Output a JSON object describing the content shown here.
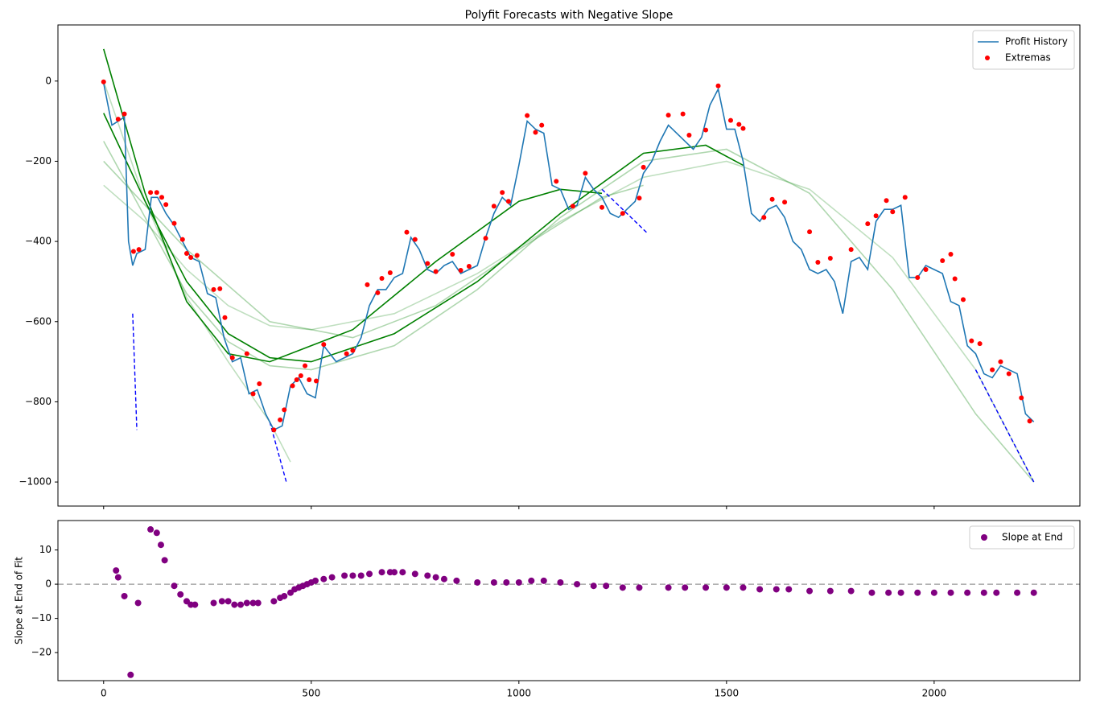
{
  "chart_data": [
    {
      "type": "line",
      "title": "Polyfit Forecasts with Negative Slope",
      "xlim": [
        -110,
        2351
      ],
      "ylim": [
        -1060,
        140
      ],
      "xticks": [
        0,
        500,
        1000,
        1500,
        2000
      ],
      "xtick_labels": false,
      "yticks": [
        0,
        {
          "value": -200,
          "label": "−200"
        },
        {
          "value": -400,
          "label": "−400"
        },
        {
          "value": -600,
          "label": "−600"
        },
        {
          "value": -800,
          "label": "−800"
        },
        {
          "value": -1000,
          "label": "−1000"
        }
      ],
      "legend": "upper right",
      "series": [
        {
          "color": "#00800040",
          "linestyle": "solid",
          "x": [
            0,
            100,
            200,
            300,
            400,
            500,
            700,
            900,
            1100,
            1300,
            1500,
            1700,
            1900,
            2100,
            2240
          ],
          "values": [
            -260,
            -350,
            -470,
            -560,
            -610,
            -620,
            -580,
            -480,
            -350,
            -240,
            -200,
            -270,
            -440,
            -720,
            -1000
          ]
        },
        {
          "color": "#00800050",
          "linestyle": "solid",
          "x": [
            0,
            100,
            200,
            300,
            400,
            500,
            700,
            900,
            1100,
            1300,
            1500,
            1700,
            1900,
            2100,
            2240
          ],
          "values": [
            -150,
            -340,
            -530,
            -650,
            -710,
            -720,
            -660,
            -520,
            -340,
            -200,
            -170,
            -280,
            -520,
            -830,
            -1000
          ]
        },
        {
          "color": "#00800050",
          "linestyle": "solid",
          "x": [
            0,
            200,
            400,
            600,
            800,
            1000,
            1200,
            1300
          ],
          "values": [
            -200,
            -420,
            -600,
            -640,
            -560,
            -420,
            -290,
            -260
          ]
        },
        {
          "color": "#00800040",
          "linestyle": "solid",
          "x": [
            0,
            50,
            100,
            200,
            300,
            400,
            450
          ],
          "values": [
            0,
            -150,
            -300,
            -540,
            -700,
            -850,
            -950
          ]
        },
        {
          "color": "#008000",
          "linestyle": "solid",
          "x": [
            0,
            100,
            200,
            300,
            400,
            500,
            700,
            900,
            1100,
            1300,
            1450,
            1540
          ],
          "values": [
            -80,
            -300,
            -500,
            -630,
            -690,
            -700,
            -630,
            -500,
            -330,
            -180,
            -160,
            -210
          ]
        },
        {
          "color": "#008000",
          "linestyle": "solid",
          "x": [
            0,
            100,
            200,
            300,
            400,
            600,
            800,
            1000,
            1100,
            1200
          ],
          "values": [
            80,
            -280,
            -550,
            -680,
            -700,
            -620,
            -450,
            -300,
            -270,
            -280
          ]
        },
        {
          "color": "#0000ff",
          "linestyle": "dashed",
          "x": [
            70,
            80
          ],
          "values": [
            -580,
            -870
          ]
        },
        {
          "color": "#0000ff",
          "linestyle": "dashed",
          "x": [
            400,
            440
          ],
          "values": [
            -850,
            -1000
          ]
        },
        {
          "color": "#0000ff",
          "linestyle": "dashed",
          "x": [
            1200,
            1310
          ],
          "values": [
            -270,
            -380
          ]
        },
        {
          "color": "#0000ff",
          "linestyle": "dashed",
          "x": [
            2100,
            2240
          ],
          "values": [
            -720,
            -1000
          ]
        },
        {
          "name": "Profit History",
          "color": "#1f77b4",
          "linestyle": "solid",
          "x": [
            0,
            20,
            35,
            50,
            60,
            70,
            80,
            100,
            115,
            130,
            150,
            170,
            190,
            210,
            230,
            250,
            270,
            290,
            310,
            330,
            350,
            370,
            390,
            410,
            430,
            450,
            470,
            490,
            510,
            530,
            560,
            600,
            620,
            640,
            660,
            680,
            700,
            720,
            740,
            760,
            780,
            800,
            820,
            840,
            860,
            880,
            900,
            920,
            940,
            960,
            980,
            1000,
            1020,
            1040,
            1060,
            1080,
            1100,
            1120,
            1140,
            1160,
            1180,
            1200,
            1220,
            1240,
            1260,
            1280,
            1300,
            1320,
            1340,
            1360,
            1380,
            1400,
            1420,
            1440,
            1460,
            1480,
            1500,
            1520,
            1540,
            1560,
            1580,
            1600,
            1620,
            1640,
            1660,
            1680,
            1700,
            1720,
            1740,
            1760,
            1780,
            1800,
            1820,
            1840,
            1860,
            1880,
            1900,
            1920,
            1940,
            1960,
            1980,
            2000,
            2020,
            2040,
            2060,
            2080,
            2100,
            2120,
            2140,
            2160,
            2180,
            2200,
            2220,
            2240
          ],
          "values": [
            -5,
            -110,
            -100,
            -90,
            -400,
            -460,
            -430,
            -420,
            -290,
            -290,
            -330,
            -360,
            -400,
            -440,
            -450,
            -530,
            -540,
            -640,
            -700,
            -690,
            -780,
            -770,
            -830,
            -870,
            -860,
            -760,
            -740,
            -780,
            -790,
            -660,
            -700,
            -680,
            -640,
            -560,
            -520,
            -520,
            -490,
            -480,
            -390,
            -420,
            -470,
            -480,
            -460,
            -450,
            -480,
            -470,
            -460,
            -390,
            -330,
            -290,
            -310,
            -210,
            -100,
            -120,
            -130,
            -260,
            -270,
            -320,
            -310,
            -240,
            -270,
            -290,
            -330,
            -340,
            -320,
            -300,
            -230,
            -200,
            -150,
            -110,
            -130,
            -150,
            -170,
            -140,
            -60,
            -20,
            -120,
            -120,
            -200,
            -330,
            -350,
            -320,
            -310,
            -340,
            -400,
            -420,
            -470,
            -480,
            -470,
            -500,
            -580,
            -450,
            -440,
            -470,
            -350,
            -320,
            -320,
            -310,
            -490,
            -490,
            -460,
            -470,
            -480,
            -550,
            -560,
            -660,
            -680,
            -730,
            -740,
            -710,
            -720,
            -730,
            -830,
            -850
          ]
        },
        {
          "name": "Extremas",
          "type": "scatter",
          "color": "#ff0000",
          "x": [
            0,
            35,
            50,
            72,
            85,
            113,
            128,
            140,
            150,
            170,
            190,
            200,
            210,
            225,
            265,
            280,
            292,
            310,
            345,
            360,
            375,
            410,
            425,
            435,
            455,
            465,
            475,
            485,
            495,
            512,
            530,
            585,
            600,
            635,
            660,
            670,
            690,
            730,
            750,
            780,
            800,
            840,
            860,
            880,
            920,
            940,
            960,
            975,
            1020,
            1040,
            1055,
            1090,
            1130,
            1160,
            1200,
            1250,
            1290,
            1300,
            1360,
            1395,
            1410,
            1450,
            1480,
            1510,
            1530,
            1540,
            1590,
            1610,
            1640,
            1700,
            1720,
            1750,
            1800,
            1840,
            1860,
            1885,
            1900,
            1930,
            1960,
            1980,
            2020,
            2040,
            2050,
            2070,
            2090,
            2110,
            2140,
            2160,
            2180,
            2210,
            2230
          ],
          "values": [
            -2,
            -95,
            -82,
            -425,
            -420,
            -278,
            -278,
            -290,
            -308,
            -355,
            -395,
            -430,
            -440,
            -435,
            -520,
            -518,
            -590,
            -690,
            -680,
            -780,
            -755,
            -870,
            -845,
            -820,
            -760,
            -745,
            -735,
            -710,
            -745,
            -748,
            -657,
            -680,
            -672,
            -508,
            -528,
            -492,
            -478,
            -377,
            -395,
            -455,
            -475,
            -432,
            -472,
            -462,
            -392,
            -312,
            -278,
            -300,
            -86,
            -128,
            -110,
            -250,
            -312,
            -230,
            -315,
            -330,
            -292,
            -215,
            -85,
            -82,
            -135,
            -122,
            -12,
            -98,
            -108,
            -118,
            -340,
            -295,
            -302,
            -376,
            -452,
            -442,
            -420,
            -356,
            -336,
            -298,
            -326,
            -290,
            -490,
            -470,
            -448,
            -432,
            -493,
            -545,
            -648,
            -655,
            -720,
            -700,
            -730,
            -790,
            -848
          ]
        }
      ]
    },
    {
      "type": "scatter",
      "ylabel": "Slope at End of Fit",
      "xlim": [
        -110,
        2351
      ],
      "ylim": [
        -28.2,
        18.6
      ],
      "xticks": [
        0,
        500,
        1000,
        1500,
        2000
      ],
      "xtick_labels": true,
      "yticks": [
        10,
        0,
        {
          "value": -10,
          "label": "−10"
        },
        {
          "value": -20,
          "label": "−20"
        }
      ],
      "hline": 0,
      "legend": "upper right",
      "series": [
        {
          "name": "Slope at End",
          "type": "scatter",
          "color": "#800080",
          "x": [
            30,
            35,
            50,
            65,
            83,
            113,
            128,
            138,
            147,
            170,
            185,
            200,
            210,
            220,
            265,
            285,
            300,
            315,
            330,
            345,
            360,
            372,
            410,
            425,
            435,
            450,
            460,
            470,
            480,
            490,
            500,
            510,
            530,
            550,
            580,
            600,
            620,
            640,
            670,
            690,
            700,
            720,
            750,
            780,
            800,
            820,
            850,
            900,
            940,
            970,
            1000,
            1030,
            1060,
            1100,
            1140,
            1180,
            1210,
            1250,
            1290,
            1360,
            1400,
            1450,
            1500,
            1540,
            1580,
            1620,
            1650,
            1700,
            1750,
            1800,
            1850,
            1890,
            1920,
            1960,
            2000,
            2040,
            2080,
            2120,
            2150,
            2200,
            2240
          ],
          "values": [
            4,
            2,
            -3.5,
            -26.5,
            -5.5,
            16,
            15,
            11.5,
            7,
            -0.5,
            -3,
            -5,
            -6,
            -6,
            -5.5,
            -5,
            -5,
            -6,
            -6,
            -5.5,
            -5.5,
            -5.5,
            -5,
            -4,
            -3.5,
            -2.5,
            -1.5,
            -1,
            -0.5,
            0,
            0.5,
            1,
            1.5,
            2,
            2.5,
            2.5,
            2.5,
            3,
            3.5,
            3.5,
            3.5,
            3.5,
            3,
            2.5,
            2,
            1.5,
            1,
            0.5,
            0.5,
            0.5,
            0.5,
            1,
            1,
            0.5,
            0,
            -0.5,
            -0.5,
            -1,
            -1,
            -1,
            -1,
            -1,
            -1,
            -1,
            -1.5,
            -1.5,
            -1.5,
            -2,
            -2,
            -2,
            -2.5,
            -2.5,
            -2.5,
            -2.5,
            -2.5,
            -2.5,
            -2.5,
            -2.5,
            -2.5,
            -2.5,
            -2.5
          ]
        }
      ]
    }
  ]
}
